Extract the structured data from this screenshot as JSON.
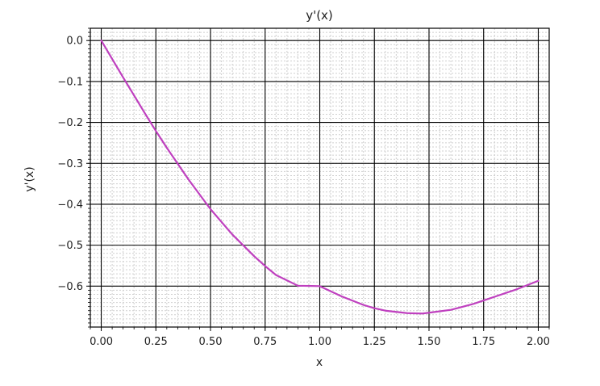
{
  "chart_data": {
    "type": "line",
    "title": "y'(x)",
    "xlabel": "x",
    "ylabel": "y'(x)",
    "xlim": [
      -0.05,
      2.05
    ],
    "ylim": [
      -0.7,
      0.03
    ],
    "grid": {
      "major": true,
      "minor": true
    },
    "x_ticks": [
      0.0,
      0.25,
      0.5,
      0.75,
      1.0,
      1.25,
      1.5,
      1.75,
      2.0
    ],
    "x_tick_labels": [
      "0.00",
      "0.25",
      "0.50",
      "0.75",
      "1.00",
      "1.25",
      "1.50",
      "1.75",
      "2.00"
    ],
    "y_ticks": [
      0.0,
      -0.1,
      -0.2,
      -0.3,
      -0.4,
      -0.5,
      -0.6
    ],
    "y_tick_labels": [
      "0.0",
      "−0.1",
      "−0.2",
      "−0.3",
      "−0.4",
      "−0.5",
      "−0.6"
    ],
    "series": [
      {
        "color": "#bf40bf",
        "x": [
          0.0,
          0.1,
          0.2,
          0.25,
          0.3,
          0.4,
          0.5,
          0.6,
          0.7,
          0.75,
          0.8,
          0.9,
          1.0,
          1.1,
          1.2,
          1.25,
          1.3,
          1.4,
          1.47,
          1.5,
          1.6,
          1.7,
          1.75,
          1.8,
          1.9,
          2.0
        ],
        "y": [
          0.0,
          -0.09,
          -0.178,
          -0.221,
          -0.262,
          -0.34,
          -0.412,
          -0.474,
          -0.527,
          -0.551,
          -0.573,
          -0.599,
          -0.6,
          -0.625,
          -0.646,
          -0.654,
          -0.66,
          -0.666,
          -0.667,
          -0.665,
          -0.658,
          -0.644,
          -0.635,
          -0.626,
          -0.608,
          -0.587
        ]
      }
    ]
  }
}
